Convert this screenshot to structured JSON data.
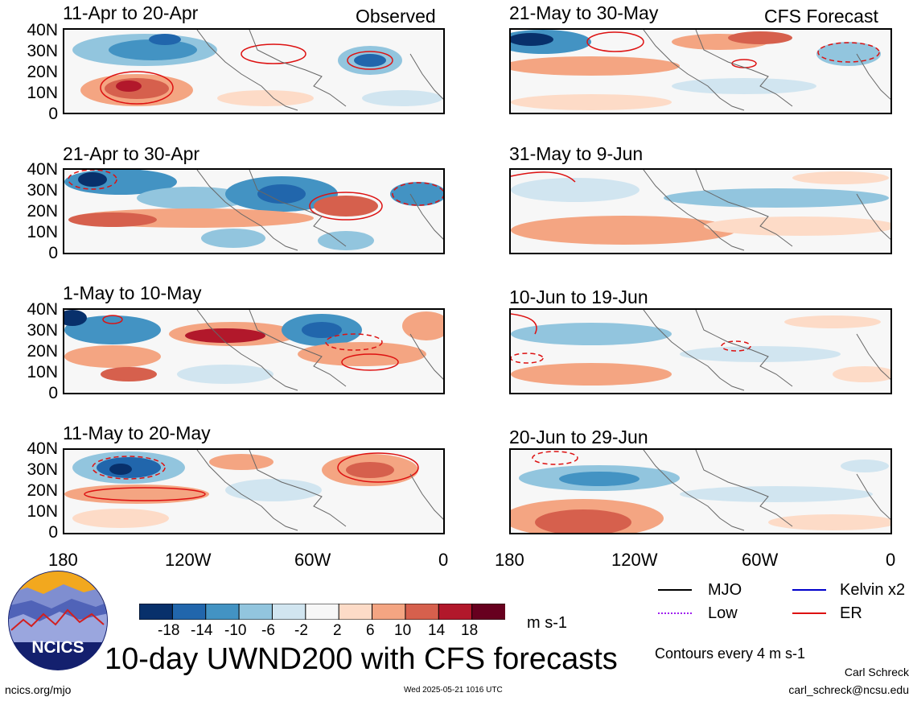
{
  "header": {
    "observed_label": "Observed",
    "forecast_label": "CFS Forecast"
  },
  "panels": {
    "left": [
      {
        "title": "11-Apr to 20-Apr"
      },
      {
        "title": "21-Apr to 30-Apr"
      },
      {
        "title": "1-May to 10-May"
      },
      {
        "title": "11-May to 20-May"
      }
    ],
    "right": [
      {
        "title": "21-May to 30-May"
      },
      {
        "title": "31-May to 9-Jun"
      },
      {
        "title": "10-Jun to 19-Jun"
      },
      {
        "title": "20-Jun to 29-Jun"
      }
    ]
  },
  "axes": {
    "lat_labels": [
      "40N",
      "30N",
      "20N",
      "10N",
      "0"
    ],
    "lon_labels": [
      "180",
      "120W",
      "60W",
      "0"
    ]
  },
  "colorbar": {
    "colors": [
      "#08306b",
      "#2166ac",
      "#4393c3",
      "#92c5de",
      "#d1e5f0",
      "#f7f7f7",
      "#fddbc7",
      "#f4a582",
      "#d6604d",
      "#b2182b",
      "#67001f"
    ],
    "ticks": [
      "-18",
      "-14",
      "-10",
      "-6",
      "-2",
      "2",
      "6",
      "10",
      "14",
      "18"
    ],
    "units": "m s-1"
  },
  "legend": {
    "mjo": "MJO",
    "kelvin": "Kelvin x2",
    "low": "Low",
    "er": "ER",
    "colors": {
      "mjo": "#000000",
      "kelvin": "#0000cc",
      "low": "#a020f0",
      "er": "#dd1111"
    }
  },
  "main_title": "10-day UWND200 with CFS forecasts",
  "contour_note": "Contours every 4 m s-1",
  "author": {
    "name": "Carl Schreck",
    "email": "carl_schreck@ncsu.edu"
  },
  "footer": {
    "url": "ncics.org/mjo",
    "timestamp": "Wed 2025-05-21 1016 UTC"
  },
  "logo": {
    "text": "NCICS"
  }
}
